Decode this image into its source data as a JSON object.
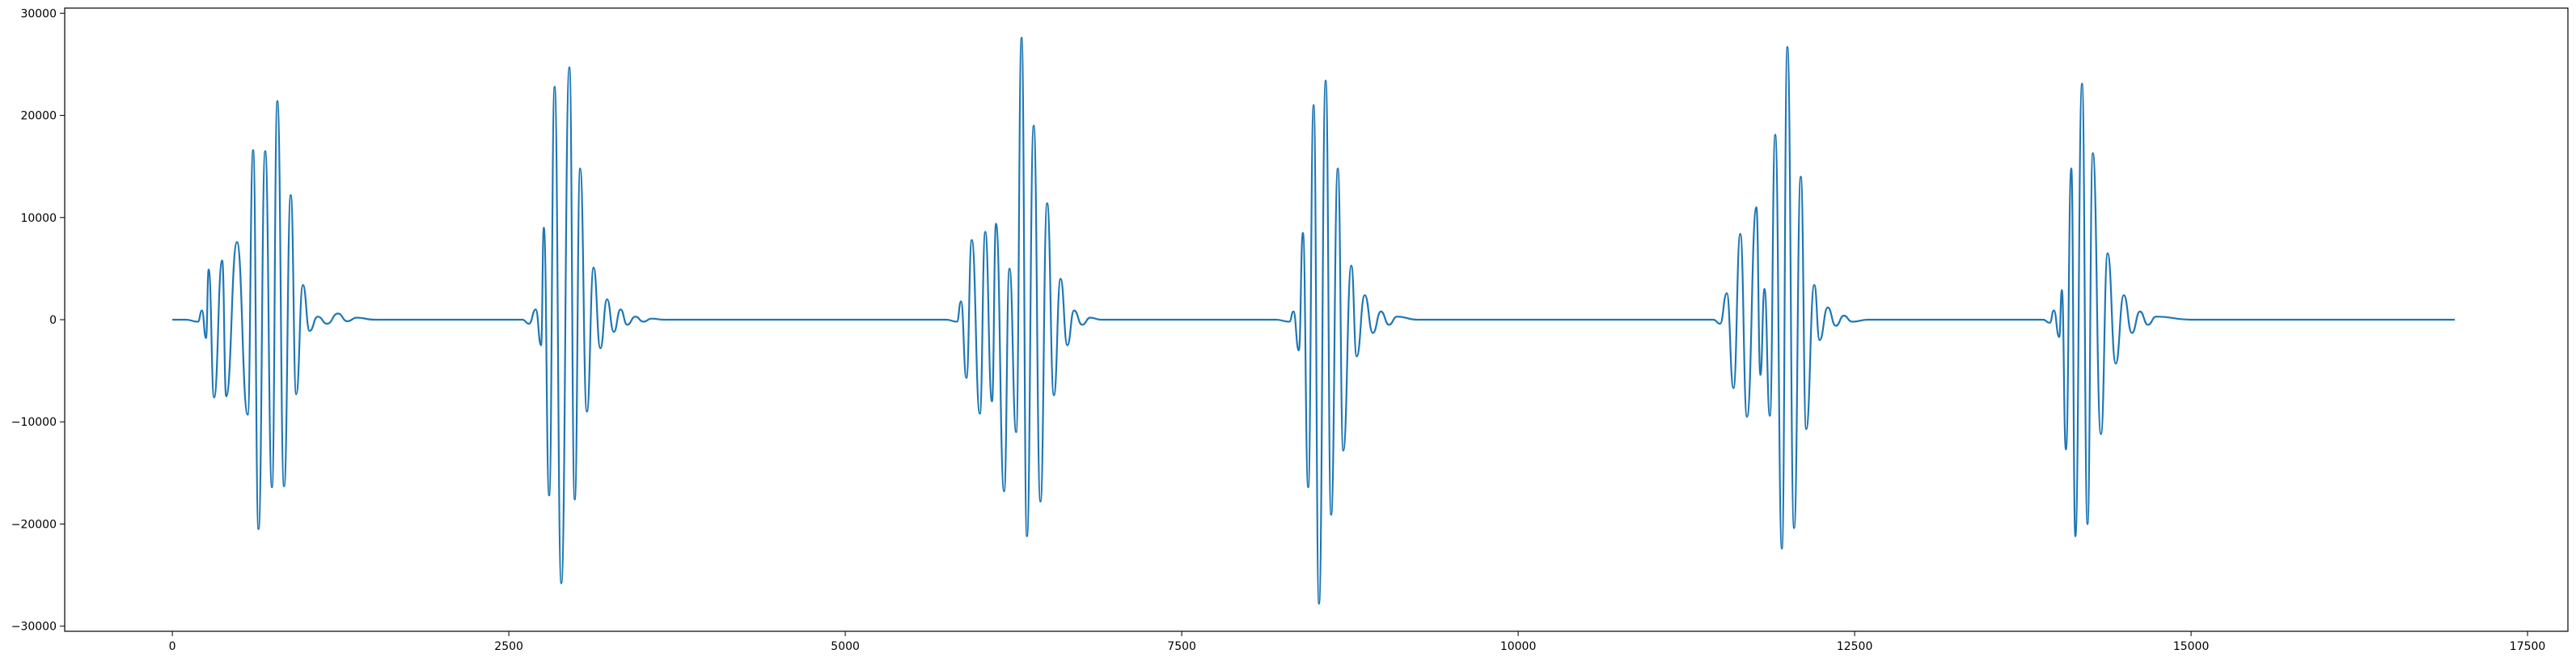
{
  "chart_data": {
    "type": "line",
    "title": "",
    "xlabel": "",
    "ylabel": "",
    "xlim": [
      -800,
      17800
    ],
    "ylim": [
      -30500,
      30500
    ],
    "x_ticks": [
      0,
      2500,
      5000,
      7500,
      10000,
      12500,
      15000,
      17500
    ],
    "x_tick_labels": [
      "0",
      "2500",
      "5000",
      "7500",
      "10000",
      "12500",
      "15000",
      "17500"
    ],
    "y_ticks": [
      -30000,
      -20000,
      -10000,
      0,
      10000,
      20000,
      30000
    ],
    "y_tick_labels": [
      "−30000",
      "−20000",
      "−10000",
      "0",
      "10000",
      "20000",
      "30000"
    ],
    "grid": false,
    "legend": "none",
    "series": [
      {
        "color": "#1f77b4",
        "x_range": [
          0,
          16960
        ],
        "bursts": [
          {
            "start": 100,
            "end": 1500,
            "peaks": [
              [
                190,
                -200
              ],
              [
                220,
                900
              ],
              [
                250,
                -1800
              ],
              [
                270,
                4900
              ],
              [
                310,
                -7600
              ],
              [
                370,
                5800
              ],
              [
                400,
                -7500
              ],
              [
                480,
                7600
              ],
              [
                560,
                -9300
              ],
              [
                600,
                16600
              ],
              [
                640,
                -20500
              ],
              [
                690,
                16500
              ],
              [
                740,
                -16400
              ],
              [
                780,
                21400
              ],
              [
                830,
                -16300
              ],
              [
                880,
                12200
              ],
              [
                920,
                -7300
              ],
              [
                970,
                3400
              ],
              [
                1020,
                -1100
              ],
              [
                1080,
                300
              ],
              [
                1150,
                -400
              ],
              [
                1230,
                600
              ],
              [
                1300,
                -150
              ],
              [
                1370,
                200
              ]
            ]
          },
          {
            "start": 2600,
            "end": 3650,
            "peaks": [
              [
                2650,
                -400
              ],
              [
                2700,
                1000
              ],
              [
                2740,
                -2500
              ],
              [
                2760,
                9000
              ],
              [
                2800,
                -17200
              ],
              [
                2840,
                22800
              ],
              [
                2890,
                -25800
              ],
              [
                2950,
                24700
              ],
              [
                2990,
                -17600
              ],
              [
                3030,
                14800
              ],
              [
                3080,
                -9000
              ],
              [
                3130,
                5100
              ],
              [
                3180,
                -2800
              ],
              [
                3230,
                2000
              ],
              [
                3280,
                -1200
              ],
              [
                3330,
                1000
              ],
              [
                3380,
                -500
              ],
              [
                3440,
                300
              ],
              [
                3500,
                -200
              ],
              [
                3560,
                100
              ]
            ]
          },
          {
            "start": 5750,
            "end": 6900,
            "peaks": [
              [
                5830,
                -200
              ],
              [
                5860,
                1800
              ],
              [
                5900,
                -5700
              ],
              [
                5940,
                7800
              ],
              [
                6000,
                -9200
              ],
              [
                6040,
                8600
              ],
              [
                6090,
                -8000
              ],
              [
                6120,
                9400
              ],
              [
                6180,
                -16800
              ],
              [
                6220,
                5000
              ],
              [
                6270,
                -11000
              ],
              [
                6310,
                27600
              ],
              [
                6350,
                -21200
              ],
              [
                6400,
                19000
              ],
              [
                6450,
                -17800
              ],
              [
                6500,
                11400
              ],
              [
                6550,
                -7400
              ],
              [
                6600,
                4000
              ],
              [
                6650,
                -2500
              ],
              [
                6700,
                900
              ],
              [
                6760,
                -500
              ],
              [
                6820,
                200
              ]
            ]
          },
          {
            "start": 8200,
            "end": 9250,
            "peaks": [
              [
                8300,
                -200
              ],
              [
                8330,
                800
              ],
              [
                8370,
                -3000
              ],
              [
                8400,
                8500
              ],
              [
                8440,
                -16400
              ],
              [
                8480,
                21000
              ],
              [
                8520,
                -27800
              ],
              [
                8570,
                23400
              ],
              [
                8610,
                -19100
              ],
              [
                8660,
                14800
              ],
              [
                8700,
                -12800
              ],
              [
                8760,
                5300
              ],
              [
                8800,
                -3600
              ],
              [
                8860,
                2400
              ],
              [
                8920,
                -1300
              ],
              [
                8980,
                800
              ],
              [
                9040,
                -500
              ],
              [
                9100,
                300
              ]
            ]
          },
          {
            "start": 11450,
            "end": 12600,
            "peaks": [
              [
                11500,
                -400
              ],
              [
                11550,
                2600
              ],
              [
                11600,
                -6700
              ],
              [
                11650,
                8400
              ],
              [
                11700,
                -9500
              ],
              [
                11770,
                11000
              ],
              [
                11800,
                -5400
              ],
              [
                11830,
                3000
              ],
              [
                11870,
                -9400
              ],
              [
                11910,
                18100
              ],
              [
                11960,
                -22400
              ],
              [
                12000,
                26700
              ],
              [
                12050,
                -20400
              ],
              [
                12100,
                14000
              ],
              [
                12140,
                -10700
              ],
              [
                12200,
                3400
              ],
              [
                12240,
                -2000
              ],
              [
                12300,
                1200
              ],
              [
                12360,
                -600
              ],
              [
                12420,
                400
              ],
              [
                12480,
                -200
              ]
            ]
          },
          {
            "start": 13900,
            "end": 15000,
            "peaks": [
              [
                13950,
                -300
              ],
              [
                13980,
                900
              ],
              [
                14020,
                -1700
              ],
              [
                14040,
                2900
              ],
              [
                14070,
                -12700
              ],
              [
                14110,
                14800
              ],
              [
                14140,
                -21200
              ],
              [
                14190,
                23100
              ],
              [
                14230,
                -20000
              ],
              [
                14270,
                16300
              ],
              [
                14330,
                -11200
              ],
              [
                14380,
                6500
              ],
              [
                14440,
                -4300
              ],
              [
                14500,
                2400
              ],
              [
                14560,
                -1300
              ],
              [
                14620,
                800
              ],
              [
                14680,
                -500
              ],
              [
                14740,
                300
              ]
            ]
          }
        ]
      }
    ]
  }
}
